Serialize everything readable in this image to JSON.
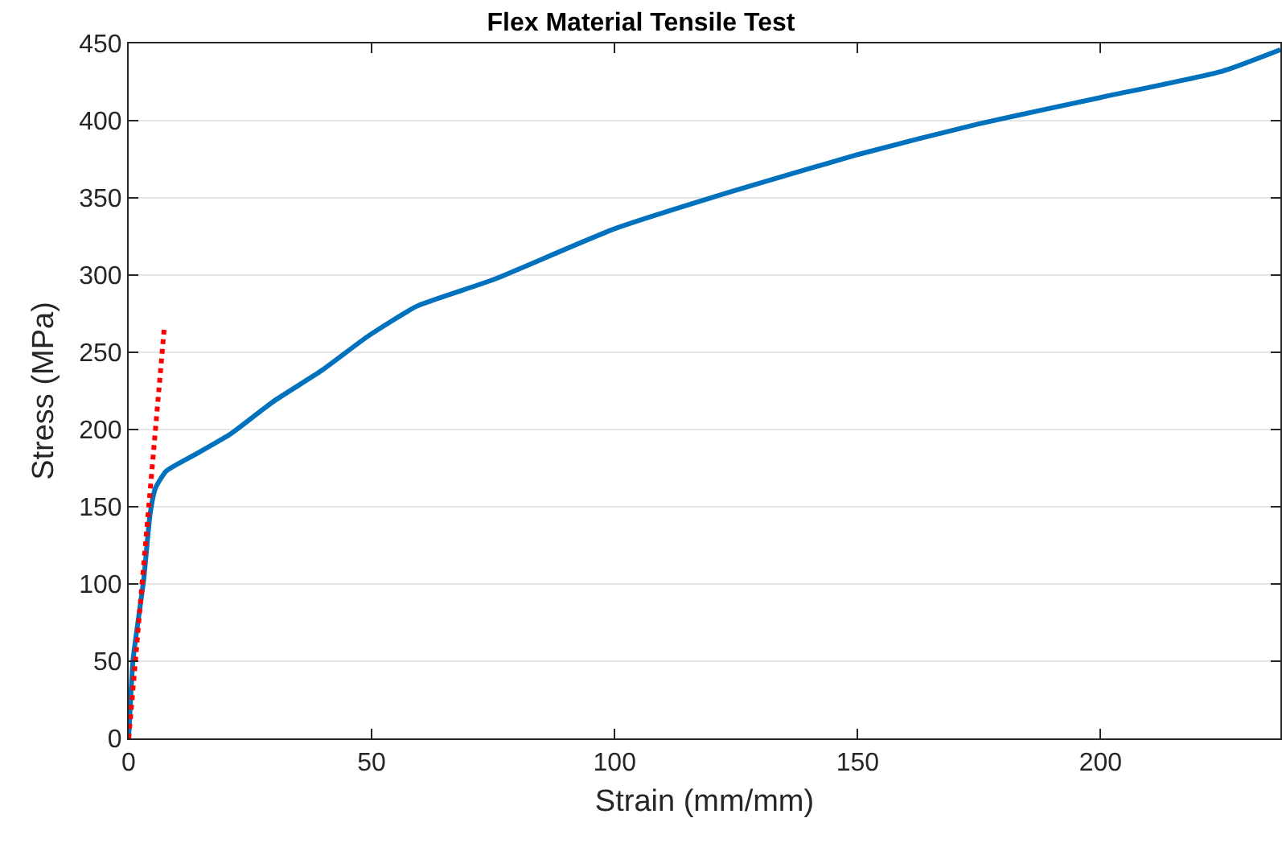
{
  "chart_data": {
    "type": "line",
    "title": "Flex Material Tensile Test",
    "xlabel": "Strain (mm/mm)",
    "ylabel": "Stress (MPa)",
    "series": [
      {
        "color": "#0072bd",
        "line_style": "solid",
        "x": [
          0,
          0.9,
          3.1,
          4.4,
          5.5,
          7.7,
          13.2,
          20.9,
          29.7,
          39.6,
          49.5,
          59.4,
          75,
          100,
          125,
          150,
          175,
          200,
          225,
          237
        ],
        "values": [
          0,
          51,
          103,
          145,
          162,
          173,
          183,
          197,
          218,
          238,
          261,
          280,
          297,
          330,
          355,
          378,
          398,
          415,
          432,
          446
        ]
      },
      {
        "color": "#ff0000",
        "line_style": "dotted",
        "x": [
          0,
          7.3
        ],
        "values": [
          0,
          265
        ]
      }
    ],
    "xlim": [
      0,
      237
    ],
    "xticks": [
      0,
      50,
      100,
      150,
      200
    ],
    "ylim": [
      0,
      450
    ],
    "yticks": [
      0,
      50,
      100,
      150,
      200,
      250,
      300,
      350,
      400,
      450
    ],
    "grid": "y"
  }
}
